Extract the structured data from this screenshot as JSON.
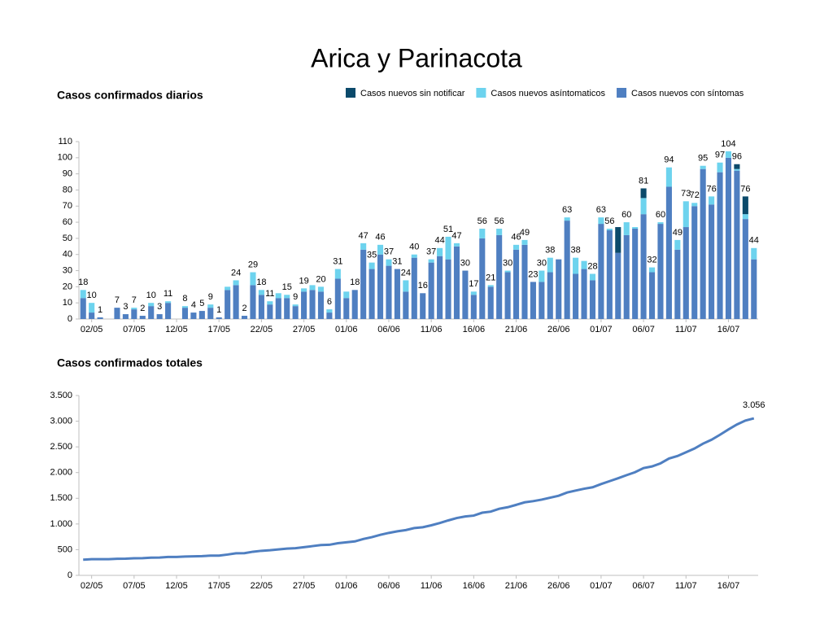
{
  "title": "Arica y Parinacota",
  "chart_data": [
    {
      "type": "stacked_bar",
      "title": "Casos confirmados diarios",
      "categories": [
        null,
        "02/05",
        null,
        null,
        null,
        null,
        "07/05",
        null,
        null,
        null,
        null,
        "12/05",
        null,
        null,
        null,
        null,
        "17/05",
        null,
        null,
        null,
        null,
        "22/05",
        null,
        null,
        null,
        null,
        "27/05",
        null,
        null,
        null,
        null,
        "01/06",
        null,
        null,
        null,
        null,
        "06/06",
        null,
        null,
        null,
        null,
        "11/06",
        null,
        null,
        null,
        null,
        "16/06",
        null,
        null,
        null,
        null,
        "21/06",
        null,
        null,
        null,
        null,
        "26/06",
        null,
        null,
        null,
        null,
        "01/07",
        null,
        null,
        null,
        null,
        "06/07",
        null,
        null,
        null,
        null,
        "11/07",
        null,
        null,
        null,
        null,
        "16/07",
        null,
        null,
        null
      ],
      "series": [
        {
          "name": "Casos nuevos sin notificar",
          "color": "#0b4a6b",
          "values": [
            0,
            0,
            0,
            0,
            0,
            0,
            0,
            0,
            0,
            0,
            0,
            0,
            0,
            0,
            0,
            0,
            0,
            0,
            0,
            0,
            0,
            0,
            0,
            0,
            0,
            0,
            0,
            0,
            0,
            0,
            0,
            0,
            0,
            0,
            0,
            0,
            0,
            0,
            0,
            0,
            0,
            0,
            0,
            0,
            0,
            0,
            0,
            0,
            0,
            0,
            0,
            0,
            0,
            0,
            0,
            0,
            0,
            0,
            0,
            0,
            0,
            0,
            0,
            16,
            0,
            0,
            6,
            0,
            0,
            0,
            0,
            0,
            0,
            0,
            0,
            0,
            0,
            3,
            11,
            0
          ]
        },
        {
          "name": "Casos nuevos asíntomaticos",
          "color": "#6dd3ee",
          "values": [
            5,
            6,
            0,
            0,
            0,
            0,
            1,
            0,
            2,
            0,
            1,
            0,
            1,
            0,
            0,
            2,
            0,
            2,
            3,
            0,
            8,
            3,
            2,
            3,
            2,
            1,
            2,
            3,
            3,
            2,
            6,
            4,
            0,
            4,
            4,
            6,
            4,
            0,
            7,
            2,
            0,
            2,
            5,
            14,
            2,
            0,
            2,
            6,
            1,
            4,
            1,
            3,
            3,
            0,
            7,
            9,
            0,
            2,
            10,
            5,
            4,
            4,
            1,
            0,
            8,
            1,
            10,
            3,
            1,
            12,
            6,
            16,
            2,
            2,
            5,
            6,
            4,
            1,
            3,
            7
          ]
        },
        {
          "name": "Casos nuevos con síntomas",
          "color": "#4f7fc1",
          "values": [
            13,
            4,
            1,
            0,
            7,
            3,
            6,
            2,
            8,
            3,
            10,
            0,
            7,
            4,
            5,
            7,
            1,
            18,
            21,
            2,
            21,
            15,
            9,
            13,
            13,
            8,
            17,
            18,
            17,
            4,
            25,
            13,
            18,
            43,
            31,
            40,
            33,
            31,
            17,
            38,
            16,
            35,
            39,
            37,
            45,
            30,
            15,
            50,
            20,
            52,
            29,
            43,
            46,
            23,
            23,
            29,
            37,
            61,
            28,
            31,
            24,
            59,
            55,
            41,
            52,
            56,
            65,
            29,
            59,
            82,
            43,
            57,
            70,
            93,
            71,
            91,
            100,
            92,
            62,
            37
          ]
        }
      ],
      "total_labels": [
        18,
        10,
        1,
        null,
        7,
        3,
        7,
        2,
        10,
        3,
        11,
        null,
        8,
        4,
        5,
        9,
        1,
        null,
        24,
        2,
        29,
        18,
        11,
        null,
        15,
        9,
        19,
        null,
        20,
        6,
        31,
        null,
        18,
        47,
        35,
        46,
        37,
        31,
        24,
        40,
        16,
        37,
        44,
        51,
        47,
        30,
        17,
        56,
        21,
        56,
        30,
        46,
        49,
        23,
        30,
        38,
        null,
        63,
        38,
        null,
        28,
        63,
        56,
        null,
        60,
        null,
        81,
        32,
        60,
        94,
        49,
        73,
        72,
        95,
        76,
        97,
        104,
        96,
        76,
        44
      ],
      "ylim": [
        0,
        110
      ],
      "yticks": [
        0,
        10,
        20,
        30,
        40,
        50,
        60,
        70,
        80,
        90,
        100,
        110
      ],
      "grid": false,
      "legend": "top-right"
    },
    {
      "type": "line",
      "title": "Casos confirmados totales",
      "categories": [
        null,
        "02/05",
        null,
        null,
        null,
        null,
        "07/05",
        null,
        null,
        null,
        null,
        "12/05",
        null,
        null,
        null,
        null,
        "17/05",
        null,
        null,
        null,
        null,
        "22/05",
        null,
        null,
        null,
        null,
        "27/05",
        null,
        null,
        null,
        null,
        "01/06",
        null,
        null,
        null,
        null,
        "06/06",
        null,
        null,
        null,
        null,
        "11/06",
        null,
        null,
        null,
        null,
        "16/06",
        null,
        null,
        null,
        null,
        "21/06",
        null,
        null,
        null,
        null,
        "26/06",
        null,
        null,
        null,
        null,
        "01/07",
        null,
        null,
        null,
        null,
        "06/07",
        null,
        null,
        null,
        null,
        "11/07",
        null,
        null,
        null,
        null,
        "16/07",
        null,
        null,
        null
      ],
      "series": [
        {
          "name": "Casos confirmados totales",
          "color": "#4f7fc1",
          "values": [
            304,
            314,
            315,
            315,
            322,
            325,
            332,
            334,
            344,
            347,
            358,
            358,
            366,
            370,
            375,
            384,
            385,
            405,
            429,
            431,
            460,
            478,
            489,
            505,
            520,
            529,
            548,
            569,
            589,
            595,
            626,
            643,
            661,
            708,
            743,
            789,
            826,
            857,
            881,
            921,
            937,
            974,
            1018,
            1069,
            1116,
            1146,
            1163,
            1219,
            1240,
            1296,
            1326,
            1372,
            1421,
            1444,
            1474,
            1512,
            1549,
            1612,
            1650,
            1686,
            1714,
            1777,
            1833,
            1890,
            1950,
            2007,
            2088,
            2120,
            2180,
            2274,
            2323,
            2396,
            2468,
            2563,
            2639,
            2736,
            2840,
            2936,
            3012,
            3056
          ],
          "value_labels": [
            null,
            null,
            null,
            null,
            null,
            null,
            null,
            null,
            null,
            null,
            null,
            null,
            null,
            null,
            null,
            null,
            null,
            null,
            null,
            null,
            null,
            null,
            null,
            null,
            null,
            null,
            null,
            null,
            null,
            null,
            null,
            null,
            null,
            null,
            null,
            null,
            null,
            null,
            null,
            null,
            null,
            null,
            null,
            null,
            null,
            null,
            null,
            null,
            null,
            null,
            null,
            null,
            null,
            null,
            null,
            null,
            null,
            null,
            null,
            null,
            null,
            null,
            null,
            null,
            null,
            null,
            null,
            null,
            null,
            null,
            null,
            null,
            null,
            null,
            null,
            null,
            null,
            null,
            null,
            "3.056"
          ]
        }
      ],
      "ylim": [
        0,
        3500
      ],
      "yticks": [
        0,
        500,
        {
          "value": 1000,
          "label": "1.000"
        },
        {
          "value": 1500,
          "label": "1.500"
        },
        {
          "value": 2000,
          "label": "2.000"
        },
        {
          "value": 2500,
          "label": "2.500"
        },
        {
          "value": 3000,
          "label": "3.000"
        },
        {
          "value": 3500,
          "label": "3.500"
        }
      ],
      "grid": false
    }
  ]
}
